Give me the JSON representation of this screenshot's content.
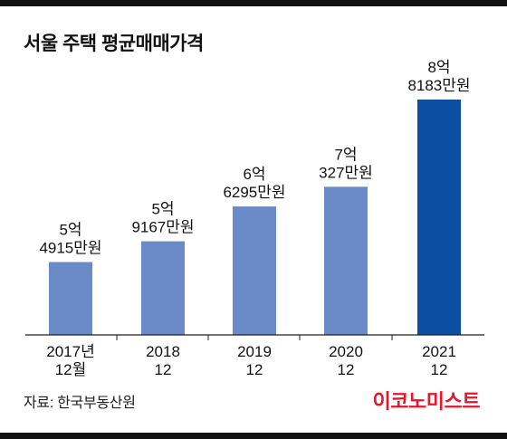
{
  "title": "서울 주택 평균매매가격",
  "source": "자료: 한국부동산원",
  "logo_text": "이코노미스트",
  "colors": {
    "bar": "#6a8ac8",
    "highlight_bar": "#0b4ea2",
    "axis": "#222222",
    "logo": "#e4172b",
    "rule": "#111111"
  },
  "chart_data": {
    "type": "bar",
    "title": "서울 주택 평균매매가격",
    "unit": "만원",
    "categories": [
      "2017년 12월",
      "2018 12",
      "2019 12",
      "2020 12",
      "2021 12"
    ],
    "category_label_lines": [
      [
        "2017년",
        "12월"
      ],
      [
        "2018",
        "12"
      ],
      [
        "2019",
        "12"
      ],
      [
        "2020",
        "12"
      ],
      [
        "2021",
        "12"
      ]
    ],
    "values": [
      54915,
      59167,
      66295,
      70327,
      88183
    ],
    "data_labels": [
      [
        "5억",
        "4915만원"
      ],
      [
        "5억",
        "9167만원"
      ],
      [
        "6억",
        "6295만원"
      ],
      [
        "7억",
        "327만원"
      ],
      [
        "8억",
        "8183만원"
      ]
    ],
    "highlight_index": 4,
    "ylim": [
      0,
      90000
    ],
    "grid": false,
    "legend": "none"
  }
}
